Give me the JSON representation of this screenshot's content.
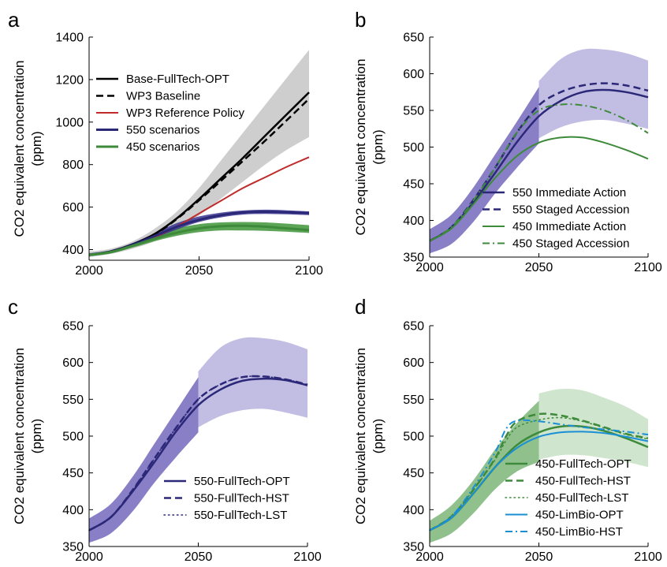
{
  "chart_data": [
    {
      "panel": "a",
      "type": "line",
      "xlim": [
        2000,
        2100
      ],
      "ylim": [
        350,
        1400
      ],
      "xticks": [
        2000,
        2050,
        2100
      ],
      "yticks": [
        400,
        600,
        800,
        1000,
        1200,
        1400
      ],
      "ylabel_line1": "CO2 equivalent concentration",
      "ylabel_line2": "(ppm)",
      "legend_position": "top-left",
      "bands": [
        {
          "color": "#bdbdbd",
          "opacity": 0.75,
          "x": [
            2000,
            2010,
            2020,
            2030,
            2040,
            2050,
            2060,
            2070,
            2080,
            2090,
            2100
          ],
          "low": [
            365,
            380,
            405,
            440,
            490,
            560,
            640,
            720,
            800,
            870,
            930
          ],
          "high": [
            390,
            405,
            440,
            500,
            580,
            690,
            820,
            950,
            1080,
            1210,
            1340
          ]
        },
        {
          "color": "#4a9a44",
          "opacity": 0.9,
          "x": [
            2000,
            2010,
            2020,
            2030,
            2040,
            2050,
            2060,
            2070,
            2080,
            2090,
            2100
          ],
          "low": [
            368,
            382,
            410,
            440,
            465,
            482,
            490,
            490,
            488,
            484,
            478
          ],
          "high": [
            380,
            396,
            428,
            465,
            500,
            520,
            528,
            530,
            528,
            522,
            515
          ]
        },
        {
          "color": "#3a3590",
          "opacity": 0.85,
          "x": [
            2000,
            2010,
            2020,
            2030,
            2040,
            2050,
            2060,
            2070,
            2080,
            2090,
            2100
          ],
          "low": [
            370,
            385,
            415,
            455,
            495,
            530,
            552,
            565,
            568,
            566,
            562
          ],
          "high": [
            382,
            398,
            432,
            478,
            525,
            556,
            574,
            584,
            588,
            585,
            580
          ]
        }
      ],
      "series": [
        {
          "name": "Base-FullTech-OPT",
          "color": "#000000",
          "dash": "solid",
          "width": 2.5,
          "x": [
            2000,
            2010,
            2020,
            2030,
            2040,
            2050,
            2060,
            2070,
            2080,
            2090,
            2100
          ],
          "y": [
            375,
            392,
            425,
            475,
            548,
            638,
            735,
            832,
            935,
            1038,
            1140
          ]
        },
        {
          "name": "WP3 Baseline",
          "color": "#000000",
          "dash": "dash",
          "width": 2.5,
          "x": [
            2000,
            2010,
            2020,
            2030,
            2040,
            2050,
            2060,
            2070,
            2080,
            2090,
            2100
          ],
          "y": [
            375,
            391,
            423,
            472,
            545,
            632,
            724,
            818,
            912,
            1010,
            1110
          ]
        },
        {
          "name": "WP3 Reference Policy",
          "color": "#c02a2a",
          "dash": "solid",
          "width": 2,
          "x": [
            2000,
            2010,
            2020,
            2030,
            2040,
            2050,
            2060,
            2070,
            2080,
            2090,
            2100
          ],
          "y": [
            375,
            390,
            420,
            460,
            510,
            570,
            630,
            690,
            740,
            790,
            835
          ]
        },
        {
          "name": "550 scenarios",
          "color": "#2b2878",
          "dash": "solid",
          "width": 3,
          "x": [
            2000,
            2010,
            2020,
            2030,
            2040,
            2050,
            2060,
            2070,
            2080,
            2090,
            2100
          ],
          "y": [
            375,
            390,
            422,
            465,
            508,
            540,
            562,
            575,
            578,
            576,
            572
          ]
        },
        {
          "name": "450 scenarios",
          "color": "#3e8a3b",
          "dash": "solid",
          "width": 3,
          "x": [
            2000,
            2010,
            2020,
            2030,
            2040,
            2050,
            2060,
            2070,
            2080,
            2090,
            2100
          ],
          "y": [
            375,
            389,
            419,
            452,
            480,
            500,
            510,
            512,
            508,
            500,
            492
          ]
        }
      ]
    },
    {
      "panel": "b",
      "type": "line",
      "xlim": [
        2000,
        2100
      ],
      "ylim": [
        350,
        650
      ],
      "xticks": [
        2000,
        2050,
        2100
      ],
      "yticks": [
        350,
        400,
        450,
        500,
        550,
        600,
        650
      ],
      "ylabel_line1": "CO2 equivalent concentration",
      "ylabel_line2": "(ppm)",
      "legend_position": "bottom-right",
      "bands": [
        {
          "color": "#6a5fb8",
          "opacity": 0.8,
          "x": [
            2000,
            2010,
            2020,
            2030,
            2040,
            2050
          ],
          "low": [
            355,
            368,
            398,
            437,
            472,
            505
          ],
          "high": [
            388,
            408,
            445,
            490,
            535,
            582
          ]
        },
        {
          "color": "#b3acdc",
          "opacity": 0.8,
          "x": [
            2050,
            2060,
            2070,
            2080,
            2090,
            2100
          ],
          "low": [
            512,
            527,
            535,
            537,
            532,
            525
          ],
          "high": [
            590,
            620,
            633,
            633,
            628,
            618
          ]
        }
      ],
      "series": [
        {
          "name": "550 Immediate Action",
          "color": "#2b2878",
          "dash": "solid",
          "width": 2.5,
          "x": [
            2000,
            2010,
            2020,
            2030,
            2040,
            2050,
            2060,
            2070,
            2080,
            2090,
            2100
          ],
          "y": [
            372,
            390,
            425,
            465,
            507,
            542,
            563,
            575,
            578,
            575,
            568
          ]
        },
        {
          "name": "550 Staged Accession",
          "color": "#2b2878",
          "dash": "dash",
          "width": 2.5,
          "x": [
            2000,
            2010,
            2020,
            2030,
            2040,
            2050,
            2060,
            2070,
            2080,
            2090,
            2100
          ],
          "y": [
            372,
            391,
            428,
            472,
            520,
            557,
            575,
            584,
            587,
            584,
            577
          ]
        },
        {
          "name": "450 Immediate Action",
          "color": "#3e8a3b",
          "dash": "solid",
          "width": 2,
          "x": [
            2000,
            2010,
            2020,
            2030,
            2040,
            2050,
            2060,
            2070,
            2080,
            2090,
            2100
          ],
          "y": [
            372,
            389,
            422,
            458,
            488,
            506,
            513,
            513,
            506,
            496,
            484
          ]
        },
        {
          "name": "450 Staged Accession",
          "color": "#3e8a3b",
          "dash": "dashdot",
          "width": 2,
          "x": [
            2000,
            2010,
            2020,
            2030,
            2040,
            2050,
            2060,
            2070,
            2080,
            2090,
            2100
          ],
          "y": [
            372,
            391,
            427,
            472,
            520,
            550,
            558,
            557,
            550,
            537,
            519
          ]
        }
      ]
    },
    {
      "panel": "c",
      "type": "line",
      "xlim": [
        2000,
        2100
      ],
      "ylim": [
        350,
        650
      ],
      "xticks": [
        2000,
        2050,
        2100
      ],
      "yticks": [
        350,
        400,
        450,
        500,
        550,
        600,
        650
      ],
      "ylabel_line1": "CO2 equivalent concentration",
      "ylabel_line2": "(ppm)",
      "legend_position": "bottom-right",
      "bands": [
        {
          "color": "#6a5fb8",
          "opacity": 0.8,
          "x": [
            2000,
            2010,
            2020,
            2030,
            2040,
            2050
          ],
          "low": [
            355,
            368,
            398,
            437,
            472,
            505
          ],
          "high": [
            388,
            408,
            445,
            490,
            535,
            580
          ]
        },
        {
          "color": "#b3acdc",
          "opacity": 0.8,
          "x": [
            2050,
            2060,
            2070,
            2080,
            2090,
            2100
          ],
          "low": [
            512,
            527,
            535,
            537,
            532,
            525
          ],
          "high": [
            588,
            620,
            633,
            633,
            628,
            618
          ]
        }
      ],
      "series": [
        {
          "name": "550-FullTech-OPT",
          "color": "#2b2878",
          "dash": "solid",
          "width": 2.5,
          "x": [
            2000,
            2010,
            2020,
            2030,
            2040,
            2050,
            2060,
            2070,
            2080,
            2090,
            2100
          ],
          "y": [
            372,
            390,
            425,
            465,
            507,
            542,
            563,
            575,
            578,
            576,
            569
          ]
        },
        {
          "name": "550-FullTech-HST",
          "color": "#2b2878",
          "dash": "dash",
          "width": 2.5,
          "x": [
            2000,
            2010,
            2020,
            2030,
            2040,
            2050,
            2060,
            2070,
            2080,
            2090,
            2100
          ],
          "y": [
            372,
            390,
            427,
            470,
            512,
            550,
            570,
            580,
            581,
            577,
            570
          ]
        },
        {
          "name": "550-FullTech-LST",
          "color": "#2b2878",
          "dash": "dot",
          "width": 1.5,
          "x": [
            2000,
            2010,
            2020,
            2030,
            2040,
            2050,
            2060,
            2070,
            2080,
            2090,
            2100
          ],
          "y": [
            372,
            390,
            427,
            470,
            512,
            550,
            570,
            580,
            581,
            577,
            570
          ]
        }
      ]
    },
    {
      "panel": "d",
      "type": "line",
      "xlim": [
        2000,
        2100
      ],
      "ylim": [
        350,
        650
      ],
      "xticks": [
        2000,
        2050,
        2100
      ],
      "yticks": [
        350,
        400,
        450,
        500,
        550,
        600,
        650
      ],
      "ylabel_line1": "CO2 equivalent concentration",
      "ylabel_line2": "(ppm)",
      "legend_position": "bottom-right",
      "bands": [
        {
          "color": "#7db679",
          "opacity": 0.85,
          "x": [
            2000,
            2010,
            2020,
            2030,
            2040,
            2050
          ],
          "low": [
            355,
            368,
            395,
            428,
            452,
            465
          ],
          "high": [
            385,
            406,
            440,
            482,
            518,
            548
          ]
        },
        {
          "color": "#c8e0c4",
          "opacity": 0.85,
          "x": [
            2050,
            2060,
            2070,
            2080,
            2090,
            2100
          ],
          "low": [
            468,
            474,
            474,
            470,
            465,
            458
          ],
          "high": [
            558,
            564,
            562,
            552,
            540,
            523
          ]
        }
      ],
      "series": [
        {
          "name": "450-FullTech-OPT",
          "color": "#3e8a3b",
          "dash": "solid",
          "width": 2.5,
          "x": [
            2000,
            2010,
            2020,
            2030,
            2040,
            2050,
            2060,
            2070,
            2080,
            2090,
            2100
          ],
          "y": [
            372,
            389,
            422,
            458,
            488,
            505,
            513,
            513,
            507,
            497,
            485
          ]
        },
        {
          "name": "450-FullTech-HST",
          "color": "#3e8a3b",
          "dash": "dash",
          "width": 2.5,
          "x": [
            2000,
            2010,
            2020,
            2030,
            2035,
            2040,
            2050,
            2060,
            2070,
            2080,
            2090,
            2100
          ],
          "y": [
            372,
            391,
            427,
            470,
            500,
            520,
            530,
            528,
            521,
            512,
            503,
            497
          ]
        },
        {
          "name": "450-FullTech-LST",
          "color": "#3e8a3b",
          "dash": "dot",
          "width": 1.5,
          "x": [
            2000,
            2010,
            2020,
            2030,
            2035,
            2040,
            2050,
            2060,
            2070,
            2080,
            2090,
            2100
          ],
          "y": [
            372,
            391,
            427,
            468,
            494,
            512,
            522,
            525,
            520,
            511,
            502,
            496
          ]
        },
        {
          "name": "450-LimBio-OPT",
          "color": "#1a8fd6",
          "dash": "solid",
          "width": 2,
          "x": [
            2000,
            2010,
            2020,
            2030,
            2040,
            2050,
            2060,
            2070,
            2080,
            2090,
            2100
          ],
          "y": [
            372,
            389,
            422,
            458,
            484,
            499,
            505,
            506,
            504,
            499,
            493
          ]
        },
        {
          "name": "450-LimBio-HST",
          "color": "#1a8fd6",
          "dash": "dashdot",
          "width": 2,
          "x": [
            2000,
            2010,
            2020,
            2030,
            2035,
            2040,
            2050,
            2060,
            2070,
            2080,
            2090,
            2100
          ],
          "y": [
            372,
            391,
            430,
            478,
            510,
            521,
            520,
            516,
            512,
            509,
            506,
            502
          ]
        }
      ]
    }
  ],
  "panel_letters": [
    "a",
    "b",
    "c",
    "d"
  ]
}
